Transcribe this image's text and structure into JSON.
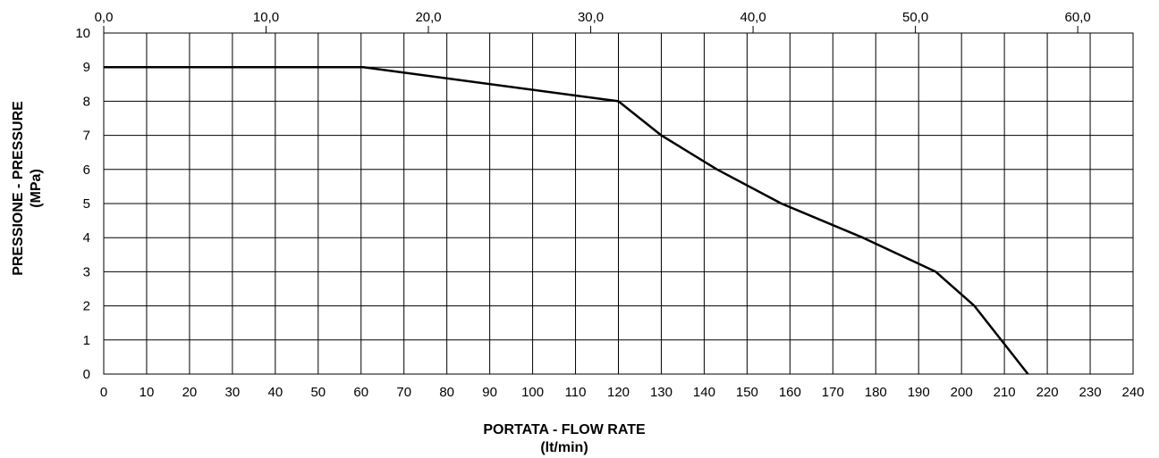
{
  "chart_data": {
    "type": "line",
    "xlabel": "PORTATA - FLOW RATE",
    "xlabel_unit": "(lt/min)",
    "ylabel": "PRESSIONE - PRESSURE",
    "ylabel_unit": "(MPa)",
    "xlim": [
      0,
      240
    ],
    "ylim": [
      0,
      10
    ],
    "grid": true,
    "x_ticks": [
      0,
      10,
      20,
      30,
      40,
      50,
      60,
      70,
      80,
      90,
      100,
      110,
      120,
      130,
      140,
      150,
      160,
      170,
      180,
      190,
      200,
      210,
      220,
      230,
      240
    ],
    "x_tick_labels": [
      "0",
      "10",
      "20",
      "30",
      "40",
      "50",
      "60",
      "70",
      "80",
      "90",
      "100",
      "110",
      "120",
      "130",
      "140",
      "150",
      "160",
      "170",
      "180",
      "190",
      "200",
      "210",
      "220",
      "230",
      "240"
    ],
    "y_ticks": [
      0,
      1,
      2,
      3,
      4,
      5,
      6,
      7,
      8,
      9,
      10
    ],
    "y_tick_labels": [
      "0",
      "1",
      "2",
      "3",
      "4",
      "5",
      "6",
      "7",
      "8",
      "9",
      "10"
    ],
    "secondary_x_ticks": [
      0,
      10,
      20,
      30,
      40,
      50,
      60
    ],
    "secondary_x_tick_labels": [
      "0,0",
      "10,0",
      "20,0",
      "30,0",
      "40,0",
      "50,0",
      "60,0"
    ],
    "secondary_x_factor": 3.785,
    "series": [
      {
        "color": "#000000",
        "x": [
          0,
          60.5,
          120,
          130,
          143,
          158,
          177,
          194,
          203,
          215.5
        ],
        "y": [
          9,
          9,
          8,
          7,
          6,
          5,
          4,
          3,
          2,
          0
        ]
      }
    ]
  }
}
